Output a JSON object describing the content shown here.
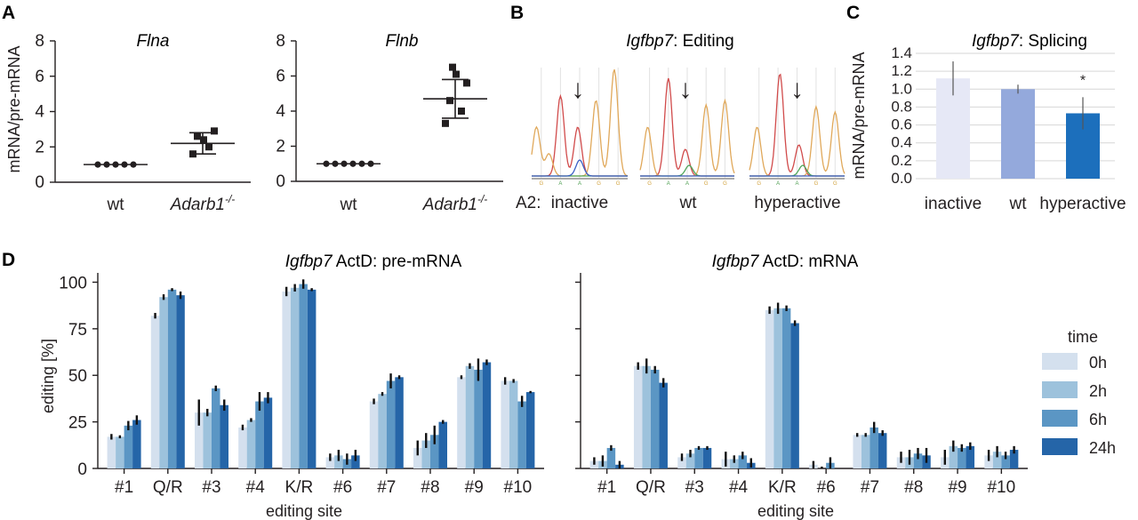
{
  "panels": {
    "A": "A",
    "B": "B",
    "C": "C",
    "D": "D"
  },
  "colors": {
    "series": [
      "#d4e0ee",
      "#9dc2dc",
      "#5b96c4",
      "#2565a8"
    ],
    "panelC": [
      "#e6e8f6",
      "#94a9dc",
      "#1c6fbc"
    ],
    "trace": {
      "red": "#d14b4b",
      "orange": "#e0a85a",
      "green": "#4fa65a",
      "blue": "#3a5fc5"
    }
  },
  "panelB": {
    "title_gene": "Igfbp7",
    "title_rest": ": Editing",
    "row_label": "A2:",
    "traces": [
      "inactive",
      "wt",
      "hyperactive"
    ],
    "base_letters": [
      "G",
      "A",
      "A",
      "G",
      "G"
    ],
    "arrow_glyph": "↓"
  },
  "chart_data": [
    {
      "id": "A-Flna",
      "type": "scatter",
      "title": "Flna",
      "ylabel": "mRNA/pre-mRNA",
      "ylim": [
        0,
        8
      ],
      "yticks": [
        0,
        2,
        4,
        6,
        8
      ],
      "categories": [
        "wt",
        "Adarb1-/-"
      ],
      "category_labels": [
        {
          "text": "wt"
        },
        {
          "text": "Adarb1",
          "sup": "-/-"
        }
      ],
      "points": [
        [
          1.0,
          1.0,
          1.0,
          1.0,
          1.0
        ],
        [
          1.6,
          2.0,
          2.6,
          2.9,
          2.4
        ]
      ],
      "mean": [
        1.0,
        2.2
      ],
      "sd": [
        0.0,
        0.6
      ]
    },
    {
      "id": "A-Flnb",
      "type": "scatter",
      "title": "Flnb",
      "ylabel": "",
      "ylim": [
        0,
        8
      ],
      "yticks": [
        0,
        2,
        4,
        6,
        8
      ],
      "categories": [
        "wt",
        "Adarb1-/-"
      ],
      "category_labels": [
        {
          "text": "wt"
        },
        {
          "text": "Adarb1",
          "sup": "-/-"
        }
      ],
      "points": [
        [
          1.0,
          1.0,
          1.0,
          1.0,
          1.0,
          1.0
        ],
        [
          3.3,
          4.0,
          4.6,
          5.6,
          6.1,
          6.5
        ]
      ],
      "mean": [
        1.0,
        4.7
      ],
      "sd": [
        0.0,
        1.1
      ]
    },
    {
      "id": "C",
      "type": "bar",
      "title_gene": "Igfbp7",
      "title_rest": ": Splicing",
      "ylabel": "mRNA/pre-mRNA",
      "ylim": [
        0,
        1.4
      ],
      "yticks": [
        "0.0",
        "0.2",
        "0.4",
        "0.6",
        "0.8",
        "1.0",
        "1.2",
        "1.4"
      ],
      "categories": [
        "inactive",
        "wt",
        "hyperactive"
      ],
      "values": [
        1.12,
        1.0,
        0.73
      ],
      "errors": [
        0.19,
        0.05,
        0.18
      ],
      "grid": true,
      "annotation": {
        "category": "hyperactive",
        "text": "*"
      }
    },
    {
      "id": "D-pre",
      "type": "bar",
      "title_gene": "Igfbp7",
      "title_rest": " ActD: pre-mRNA",
      "xlabel": "editing site",
      "ylabel": "editing [%]",
      "ylim": [
        0,
        105
      ],
      "yticks": [
        0,
        25,
        50,
        75,
        100
      ],
      "categories": [
        "#1",
        "Q/R",
        "#3",
        "#4",
        "K/R",
        "#6",
        "#7",
        "#8",
        "#9",
        "#10"
      ],
      "series": [
        {
          "name": "0h",
          "values": [
            17,
            82,
            30,
            22,
            95,
            6,
            36,
            11,
            49,
            47
          ],
          "errors": [
            1.5,
            1.5,
            7,
            1.5,
            2.5,
            2,
            1.5,
            4,
            1,
            2
          ]
        },
        {
          "name": "2h",
          "values": [
            17,
            92,
            30,
            26,
            97,
            7,
            40,
            15,
            55,
            47
          ],
          "errors": [
            0.8,
            1.5,
            2,
            1,
            2,
            3,
            1,
            4,
            1.5,
            1
          ]
        },
        {
          "name": "6h",
          "values": [
            23,
            96,
            43,
            36,
            99,
            5,
            47,
            18,
            53,
            36
          ],
          "errors": [
            2.5,
            0.8,
            1.5,
            5,
            2.5,
            3,
            4,
            5,
            6,
            3
          ]
        },
        {
          "name": "24h",
          "values": [
            26,
            93,
            34,
            38,
            96,
            7,
            49,
            25,
            57,
            41
          ],
          "errors": [
            2.5,
            2,
            3,
            3,
            0.8,
            3,
            1,
            1,
            1.5,
            0.6
          ]
        }
      ]
    },
    {
      "id": "D-mRNA",
      "type": "bar",
      "title_gene": "Igfbp7",
      "title_rest": " ActD: mRNA",
      "xlabel": "editing site",
      "ylabel": "",
      "ylim": [
        0,
        105
      ],
      "yticks": [],
      "categories": [
        "#1",
        "Q/R",
        "#3",
        "#4",
        "K/R",
        "#6",
        "#7",
        "#8",
        "#9",
        "#10"
      ],
      "series": [
        {
          "name": "0h",
          "values": [
            4,
            55,
            6,
            5,
            85,
            2,
            18,
            6,
            6,
            7
          ],
          "errors": [
            2,
            2,
            2,
            4,
            2,
            2,
            1,
            3,
            4,
            3
          ]
        },
        {
          "name": "2h",
          "values": [
            4,
            55,
            8,
            5,
            86,
            0,
            18,
            6,
            12,
            9
          ],
          "errors": [
            3,
            4,
            2,
            2,
            3,
            1,
            1,
            4,
            3,
            3
          ]
        },
        {
          "name": "6h",
          "values": [
            11,
            53,
            11,
            7,
            86,
            3,
            22,
            8,
            11,
            7
          ],
          "errors": [
            1.5,
            2,
            1,
            2,
            1.5,
            3,
            3,
            3,
            2,
            2
          ]
        },
        {
          "name": "24h",
          "values": [
            2,
            46,
            11,
            3,
            78,
            0,
            19,
            7,
            12,
            10
          ],
          "errors": [
            2,
            2.5,
            1,
            2.5,
            1.5,
            0,
            1.5,
            4,
            2,
            2
          ]
        }
      ],
      "legend": {
        "title": "time",
        "position": "right",
        "entries": [
          "0h",
          "2h",
          "6h",
          "24h"
        ]
      }
    }
  ]
}
